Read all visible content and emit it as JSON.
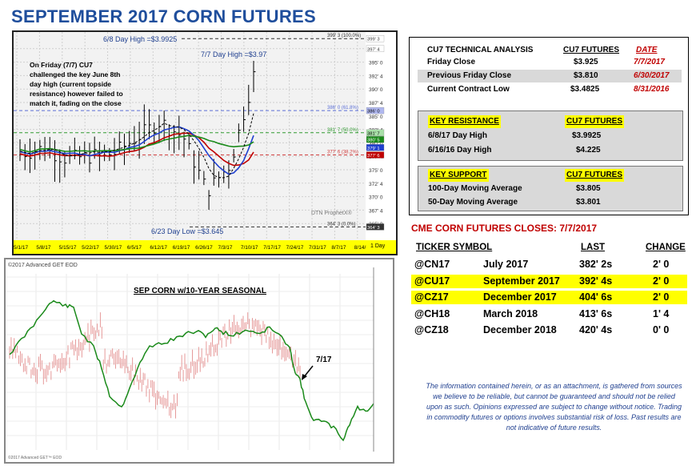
{
  "title": "SEPTEMBER 2017 CORN FUTURES",
  "daily_chart": {
    "annotation_high_68": "6/8 Day High =$3.9925",
    "annotation_high_77": "7/7 Day High =$3.97",
    "annotation_low": "6/23 Day Low =$3.645",
    "note_lines": [
      "On Friday (7/7) CU7",
      "challenged the key June 8th",
      "day high (current topside",
      "resistance) however failed to",
      "match it, fading on the close"
    ],
    "fib_labels": [
      "399' 3 (100.0%)",
      "386' 0 (61.8%)",
      "381' 7 (50.0%)",
      "377' 6 (38.2%)",
      "364' 3 (0.0%)"
    ],
    "y_ticks": [
      "397' 4",
      "395' 0",
      "392' 4",
      "390' 0",
      "387' 4",
      "385' 0",
      "382' 4",
      "380' 0",
      "377' 4",
      "375' 0",
      "372' 4",
      "370' 0",
      "367' 4",
      "365' 0"
    ],
    "price_tags": [
      "399' 3",
      "397' 4",
      "386' 0",
      "381' 7",
      "380' 5",
      "379' 1",
      "377' 6",
      "364' 3"
    ],
    "x_labels": [
      "5/1/17",
      "5/8/17",
      "5/15/17",
      "5/22/17",
      "5/30/17",
      "6/5/17",
      "6/12/17",
      "6/19/17",
      "6/26/17",
      "7/3/17",
      "7/10/17",
      "7/17/17",
      "7/24/17",
      "7/31/17",
      "8/7/17",
      "8/14/"
    ],
    "watermark": "DTN ProphetX®",
    "period": "1 Day",
    "colors": {
      "fib_blue": "#5b6fd6",
      "fib_green": "#2f9a2f",
      "fib_red": "#d04040",
      "ma_red": "#c00000",
      "ma_blue": "#1f3fcf",
      "ma_green": "#1a8a1a"
    }
  },
  "seasonal_chart": {
    "copyright": "©2017 Advanced GET EOD",
    "label": "SEP CORN w/10-YEAR SEASONAL",
    "marker": "7/17",
    "footer": "©2017 Advanced GET™ EOD",
    "colors": {
      "seasonal": "#1a8a1a",
      "price": "#e08080"
    }
  },
  "technical": {
    "header": {
      "label": "CU7 TECHNICAL ANALYSIS",
      "col": "CU7 FUTURES",
      "date": "DATE"
    },
    "rows": [
      {
        "label": "Friday Close",
        "value": "$3.925",
        "date": "7/7/2017"
      },
      {
        "label": "Previous Friday Close",
        "value": "$3.810",
        "date": "6/30/2017"
      },
      {
        "label": "Current Contract Low",
        "value": "$3.4825",
        "date": "8/31/2016"
      }
    ],
    "resistance": {
      "header": "KEY RESISTANCE",
      "col": "CU7 FUTURES",
      "rows": [
        {
          "label": "6/8/17 Day High",
          "value": "$3.9925"
        },
        {
          "label": "6/16/16 Day High",
          "value": "$4.225"
        }
      ]
    },
    "support": {
      "header": "KEY SUPPORT",
      "col": "CU7 FUTURES",
      "rows": [
        {
          "label": "100-Day Moving Average",
          "value": "$3.805"
        },
        {
          "label": "50-Day Moving Average",
          "value": "$3.801"
        }
      ]
    }
  },
  "closes": {
    "title": "CME CORN FUTURES CLOSES:  7/7/2017",
    "headers": {
      "ticker": "TICKER SYMBOL",
      "last": "LAST",
      "change": "CHANGE"
    },
    "rows": [
      {
        "ticker": "@CN17",
        "month": "July 2017",
        "last": "382' 2s",
        "change": "2' 0",
        "highlight": false
      },
      {
        "ticker": "@CU17",
        "month": "September 2017",
        "last": "392' 4s",
        "change": "2' 0",
        "highlight": true
      },
      {
        "ticker": "@CZ17",
        "month": "December 2017",
        "last": "404' 6s",
        "change": "2' 0",
        "highlight": true
      },
      {
        "ticker": "@CH18",
        "month": "March 2018",
        "last": "413' 6s",
        "change": "1' 4",
        "highlight": false
      },
      {
        "ticker": "@CZ18",
        "month": "December 2018",
        "last": "420' 4s",
        "change": "0' 0",
        "highlight": false
      }
    ]
  },
  "disclaimer": "The information contained herein, or as an attachment, is gathered from sources we believe to be reliable, but cannot be guaranteed and should not be relied upon as such. Opinions expressed are subject to change without notice. Trading in commodity futures or options involves substantial risk of loss. Past results are not indicative of future results.",
  "chart_data": [
    {
      "type": "line",
      "title": "",
      "ylim": [
        362.5,
        400
      ],
      "x": [
        "5/1/17",
        "5/8/17",
        "5/15/17",
        "5/22/17",
        "5/30/17",
        "6/5/17",
        "6/12/17",
        "6/19/17",
        "6/26/17",
        "7/3/17",
        "7/7/17"
      ],
      "series": [
        {
          "values": [
            378,
            379,
            377,
            377.5,
            378,
            381,
            384,
            381,
            371,
            376,
            392.5
          ]
        }
      ]
    },
    {
      "type": "line",
      "title": "SEP CORN w/10-YEAR SEASONAL",
      "series": []
    }
  ]
}
